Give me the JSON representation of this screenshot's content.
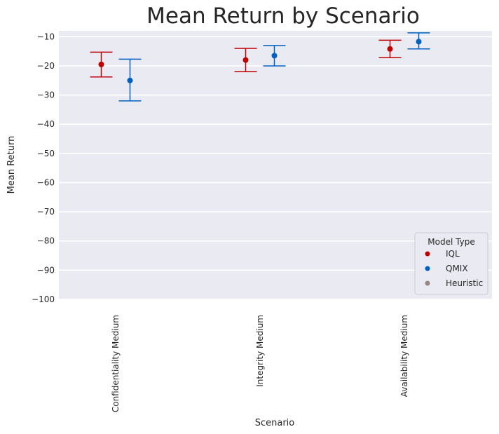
{
  "chart_data": {
    "type": "scatter",
    "title": "Mean Return by Scenario",
    "xlabel": "Scenario",
    "ylabel": "Mean Return",
    "ylim": [
      -100,
      -8
    ],
    "yticks": [
      -10,
      -20,
      -30,
      -40,
      -50,
      -60,
      -70,
      -80,
      -90,
      -100
    ],
    "ytick_labels": [
      "−10",
      "−20",
      "−30",
      "−40",
      "−50",
      "−60",
      "−70",
      "−80",
      "−90",
      "−100"
    ],
    "categories": [
      "Confidentiality Medium",
      "Integrity Medium",
      "Availability Medium"
    ],
    "grid": true,
    "legend_position": "bottom-right",
    "legend_title": "Model Type",
    "series": [
      {
        "name": "IQL",
        "color": "#c00000",
        "values": [
          -19.5,
          -18.0,
          -14.2
        ],
        "error_low": [
          -23.8,
          -22.0,
          -17.2
        ],
        "error_high": [
          -15.3,
          -14.0,
          -11.2
        ]
      },
      {
        "name": "QMIX",
        "color": "#0060c0",
        "values": [
          -25.0,
          -16.5,
          -11.7
        ],
        "error_low": [
          -32.0,
          -20.0,
          -14.2
        ],
        "error_high": [
          -17.7,
          -13.0,
          -8.7
        ]
      },
      {
        "name": "Heuristic",
        "color": "#968880",
        "values": [],
        "error_low": [],
        "error_high": []
      }
    ]
  }
}
